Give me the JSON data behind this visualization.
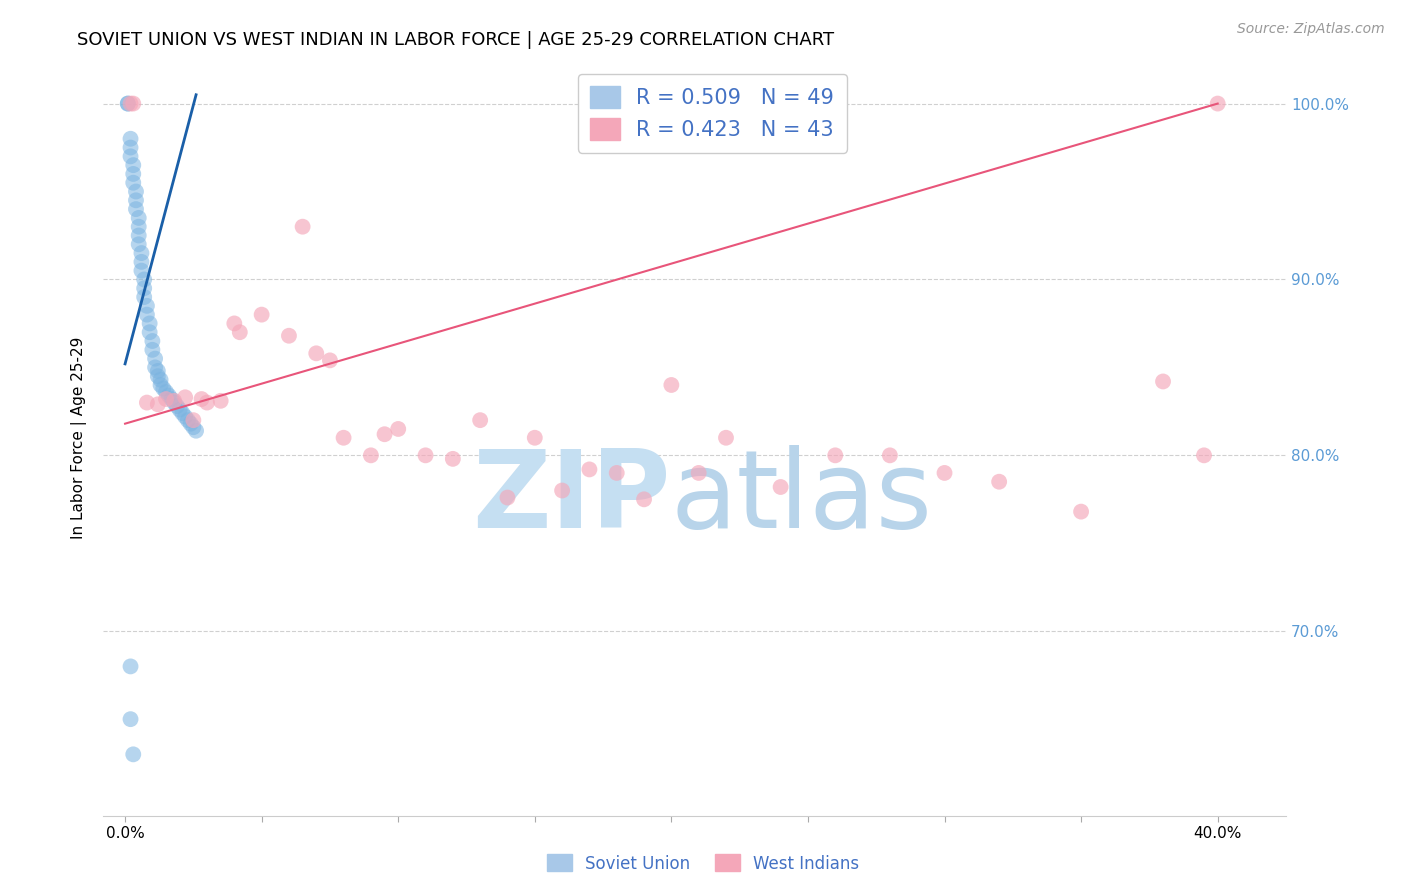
{
  "title": "SOVIET UNION VS WEST INDIAN IN LABOR FORCE | AGE 25-29 CORRELATION CHART",
  "source": "Source: ZipAtlas.com",
  "ylabel": "In Labor Force | Age 25-29",
  "xlim": [
    -0.008,
    0.425
  ],
  "ylim": [
    0.595,
    1.025
  ],
  "yticks": [
    0.7,
    0.8,
    0.9,
    1.0
  ],
  "ytick_labels": [
    "70.0%",
    "80.0%",
    "90.0%",
    "100.0%"
  ],
  "xticks": [
    0.0,
    0.05,
    0.1,
    0.15,
    0.2,
    0.25,
    0.3,
    0.35,
    0.4
  ],
  "xtick_labels": [
    "0.0%",
    "",
    "",
    "",
    "",
    "",
    "",
    "",
    "40.0%"
  ],
  "soviet_color": "#7ab3e0",
  "west_indian_color": "#f4a7b9",
  "soviet_line_color": "#1a5fa8",
  "west_indian_line_color": "#e8557a",
  "background_color": "#ffffff",
  "watermark_zip_color": "#c5dff2",
  "watermark_atlas_color": "#b8d4ea",
  "grid_color": "#d0d0d0",
  "title_fontsize": 13,
  "axis_label_fontsize": 11,
  "tick_fontsize": 11,
  "legend_fontsize": 15,
  "source_fontsize": 10,
  "right_ytick_color": "#5b9bd5",
  "soviet_x": [
    0.001,
    0.001,
    0.002,
    0.002,
    0.002,
    0.003,
    0.003,
    0.003,
    0.004,
    0.004,
    0.004,
    0.005,
    0.005,
    0.005,
    0.005,
    0.006,
    0.006,
    0.006,
    0.007,
    0.007,
    0.007,
    0.008,
    0.008,
    0.009,
    0.009,
    0.01,
    0.01,
    0.011,
    0.011,
    0.012,
    0.012,
    0.013,
    0.013,
    0.014,
    0.015,
    0.016,
    0.017,
    0.018,
    0.019,
    0.02,
    0.021,
    0.022,
    0.023,
    0.024,
    0.025,
    0.026,
    0.002,
    0.002,
    0.003
  ],
  "soviet_y": [
    1.0,
    1.0,
    0.98,
    0.975,
    0.97,
    0.965,
    0.96,
    0.955,
    0.95,
    0.945,
    0.94,
    0.935,
    0.93,
    0.925,
    0.92,
    0.915,
    0.91,
    0.905,
    0.9,
    0.895,
    0.89,
    0.885,
    0.88,
    0.875,
    0.87,
    0.865,
    0.86,
    0.855,
    0.85,
    0.848,
    0.845,
    0.843,
    0.84,
    0.838,
    0.836,
    0.834,
    0.832,
    0.83,
    0.828,
    0.826,
    0.824,
    0.822,
    0.82,
    0.818,
    0.816,
    0.814,
    0.68,
    0.65,
    0.63
  ],
  "west_x": [
    0.002,
    0.003,
    0.04,
    0.042,
    0.015,
    0.018,
    0.022,
    0.028,
    0.035,
    0.05,
    0.06,
    0.065,
    0.07,
    0.075,
    0.08,
    0.09,
    0.095,
    0.1,
    0.11,
    0.12,
    0.13,
    0.14,
    0.15,
    0.16,
    0.17,
    0.18,
    0.19,
    0.2,
    0.21,
    0.22,
    0.24,
    0.26,
    0.28,
    0.3,
    0.32,
    0.35,
    0.38,
    0.395,
    0.4,
    0.008,
    0.012,
    0.025,
    0.03
  ],
  "west_y": [
    1.0,
    1.0,
    0.875,
    0.87,
    0.832,
    0.831,
    0.833,
    0.832,
    0.831,
    0.88,
    0.868,
    0.93,
    0.858,
    0.854,
    0.81,
    0.8,
    0.812,
    0.815,
    0.8,
    0.798,
    0.82,
    0.776,
    0.81,
    0.78,
    0.792,
    0.79,
    0.775,
    0.84,
    0.79,
    0.81,
    0.782,
    0.8,
    0.8,
    0.79,
    0.785,
    0.768,
    0.842,
    0.8,
    1.0,
    0.83,
    0.829,
    0.82,
    0.83
  ],
  "sov_line_x": [
    0.0,
    0.026
  ],
  "sov_line_y": [
    0.852,
    1.005
  ],
  "wi_line_x": [
    0.0,
    0.4
  ],
  "wi_line_y": [
    0.818,
    1.0
  ]
}
